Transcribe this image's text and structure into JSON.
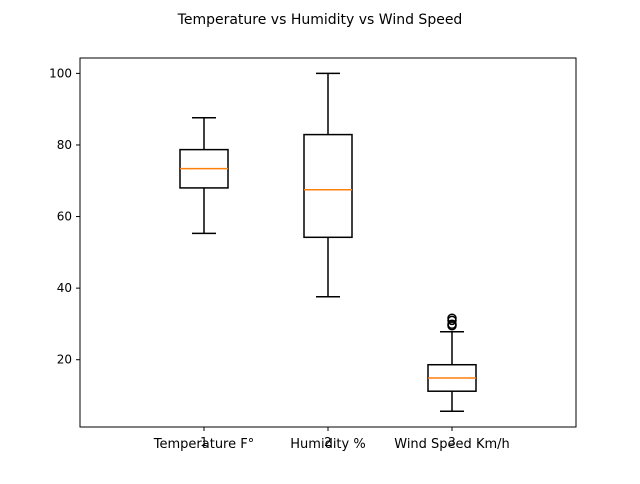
{
  "chart_data": {
    "type": "box",
    "title": "Temperature vs Humidity vs Wind Speed",
    "xlabel": "",
    "ylabel": "",
    "ylim": [
      1.2,
      104.3
    ],
    "yticks": [
      20,
      40,
      60,
      80,
      100
    ],
    "xticks": [
      "1",
      "2",
      "3"
    ],
    "categories": [
      "Temperature F°",
      "Humidity %",
      "Wind Speed Km/h"
    ],
    "series": [
      {
        "whisker_low": 55.3,
        "q1": 68.0,
        "median": 73.4,
        "q3": 78.7,
        "whisker_high": 87.6,
        "outliers": []
      },
      {
        "whisker_low": 37.6,
        "q1": 54.2,
        "median": 67.5,
        "q3": 82.9,
        "whisker_high": 100.0,
        "outliers": []
      },
      {
        "whisker_low": 5.6,
        "q1": 11.2,
        "median": 14.9,
        "q3": 18.6,
        "whisker_high": 27.8,
        "outliers": [
          29.5,
          29.9,
          31.0,
          31.6
        ]
      }
    ],
    "grid": false,
    "colors": {
      "box": "#000000",
      "median": "#ff7f0e",
      "axes": "#000000"
    }
  }
}
